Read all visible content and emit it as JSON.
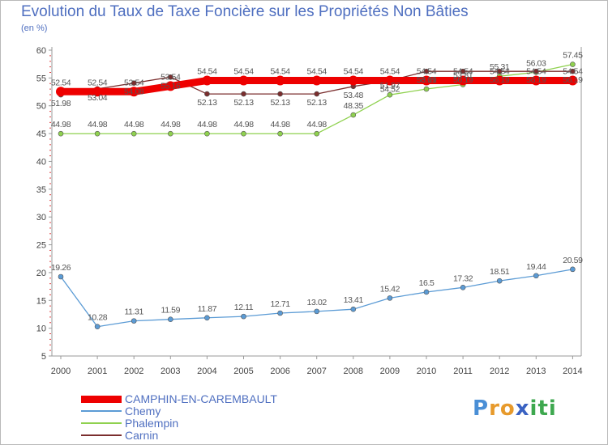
{
  "header": {
    "title": "Evolution du Taux de Taxe Foncière sur les Propriétés Non Bâties",
    "unit": "(en %)"
  },
  "chart_data": {
    "type": "line",
    "title": "Evolution du Taux de Taxe Foncière sur les Propriétés Non Bâties",
    "ylabel": "(en %)",
    "xlabel": "",
    "x": [
      2000,
      2001,
      2002,
      2003,
      2004,
      2005,
      2006,
      2007,
      2008,
      2009,
      2010,
      2011,
      2012,
      2013,
      2014
    ],
    "ylim": [
      5,
      60
    ],
    "yticks": [
      5,
      10,
      15,
      20,
      25,
      30,
      35,
      40,
      45,
      50,
      55,
      60
    ],
    "grid": false,
    "legend_position": "bottom-left",
    "series": [
      {
        "name": "Chemy",
        "color": "#5b9bd5",
        "values": [
          19.26,
          10.28,
          11.31,
          11.59,
          11.87,
          12.11,
          12.71,
          13.02,
          13.41,
          15.42,
          16.5,
          17.32,
          18.51,
          19.44,
          20.59
        ],
        "labels": [
          "19.26",
          "10.28",
          "11.31",
          "11.59",
          "11.87",
          "12.11",
          "12.71",
          "13.02",
          "13.41",
          "15.42",
          "16.5",
          "17.32",
          "18.51",
          "19.44",
          "20.59"
        ]
      },
      {
        "name": "Phalempin",
        "color": "#8fd14f",
        "values": [
          44.98,
          44.98,
          44.98,
          44.98,
          44.98,
          44.98,
          44.98,
          44.98,
          48.35,
          51.97,
          53.01,
          53.81,
          55.31,
          56.03,
          57.45
        ],
        "labels": [
          "44.98",
          "44.98",
          "44.98",
          "44.98",
          "44.98",
          "44.98",
          "44.98",
          "44.98",
          "48.35",
          "51.97",
          "53.01",
          "53.81",
          "55.31",
          "56.03",
          "57.45"
        ]
      },
      {
        "name": "Carnin",
        "color": "#7b2e2e",
        "values": [
          51.98,
          53.04,
          54.08,
          55.16,
          52.13,
          52.13,
          52.13,
          52.13,
          53.48,
          54.52,
          56.19,
          56.19,
          56.19,
          56.19,
          56.19
        ],
        "labels": [
          "51.98",
          "53.04",
          "54.08",
          "55.16",
          "52.13",
          "52.13",
          "52.13",
          "52.13",
          "53.48",
          "54.52",
          "56.19",
          "56.19",
          "56.19",
          "56.19",
          "56.19"
        ]
      },
      {
        "name": "CAMPHIN-EN-CAREMBAULT",
        "color": "#ee0000",
        "values": [
          52.54,
          52.54,
          52.54,
          53.54,
          54.54,
          54.54,
          54.54,
          54.54,
          54.54,
          54.54,
          54.54,
          54.54,
          54.54,
          54.54,
          54.54
        ],
        "labels": [
          "52.54",
          "52.54",
          "52.54",
          "53.54",
          "54.54",
          "54.54",
          "54.54",
          "54.54",
          "54.54",
          "54.54",
          "54.54",
          "54.54",
          "54.54",
          "54.54",
          "54.54"
        ]
      }
    ]
  },
  "legend": [
    {
      "name": "CAMPHIN-EN-CAREMBAULT",
      "color": "#ee0000"
    },
    {
      "name": "Chemy",
      "color": "#5b9bd5"
    },
    {
      "name": "Phalempin",
      "color": "#8fd14f"
    },
    {
      "name": "Carnin",
      "color": "#7b2e2e"
    }
  ],
  "logo": {
    "letters": [
      "P",
      "r",
      "o",
      "x",
      "i",
      "t",
      "i"
    ],
    "colors": [
      "#4a8fd6",
      "#e79a2c",
      "#e79a2c",
      "#3a62c2",
      "#3ea84f",
      "#3ea84f",
      "#3ea84f"
    ]
  }
}
